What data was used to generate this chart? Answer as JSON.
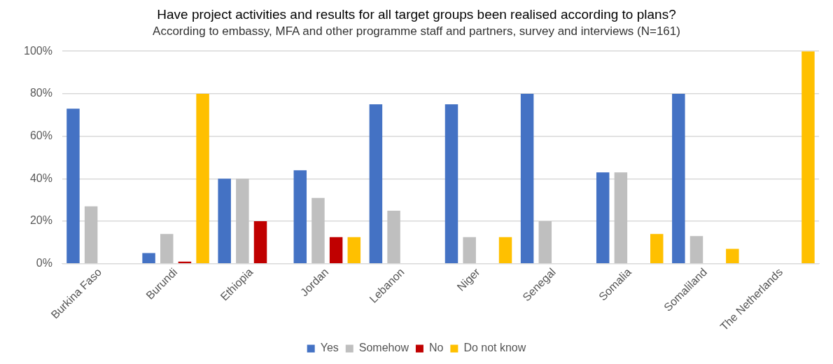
{
  "chart_data": {
    "type": "bar",
    "title": "Have project activities and results for all target groups been realised according to plans?",
    "subtitle": "According to embassy, MFA and other programme staff and partners, survey and interviews (N=161)",
    "categories": [
      "Burkina Faso",
      "Burundi",
      "Ethiopia",
      "Jordan",
      "Lebanon",
      "Niger",
      "Senegal",
      "Somalia",
      "Somaliland",
      "The Netherlands"
    ],
    "series": [
      {
        "name": "Yes",
        "color": "#4472c4",
        "values": [
          73,
          5,
          40,
          44,
          75,
          75,
          80,
          43,
          80,
          0
        ]
      },
      {
        "name": "Somehow",
        "color": "#bfbfbf",
        "values": [
          27,
          14,
          40,
          31,
          25,
          12.5,
          20,
          43,
          13,
          0
        ]
      },
      {
        "name": "No",
        "color": "#c00000",
        "values": [
          0,
          1,
          20,
          12.5,
          0,
          0,
          0,
          0,
          0,
          0
        ]
      },
      {
        "name": "Do not know",
        "color": "#ffc000",
        "values": [
          0,
          80,
          0,
          12.5,
          0,
          12.5,
          0,
          14,
          7,
          100
        ]
      }
    ],
    "ylim": [
      0,
      100
    ],
    "yticks": [
      {
        "value": 0,
        "label": "0%"
      },
      {
        "value": 20,
        "label": "20%"
      },
      {
        "value": 40,
        "label": "40%"
      },
      {
        "value": 60,
        "label": "60%"
      },
      {
        "value": 80,
        "label": "80%"
      },
      {
        "value": 100,
        "label": "100%"
      }
    ],
    "grid": "y",
    "legend": "bottom"
  }
}
